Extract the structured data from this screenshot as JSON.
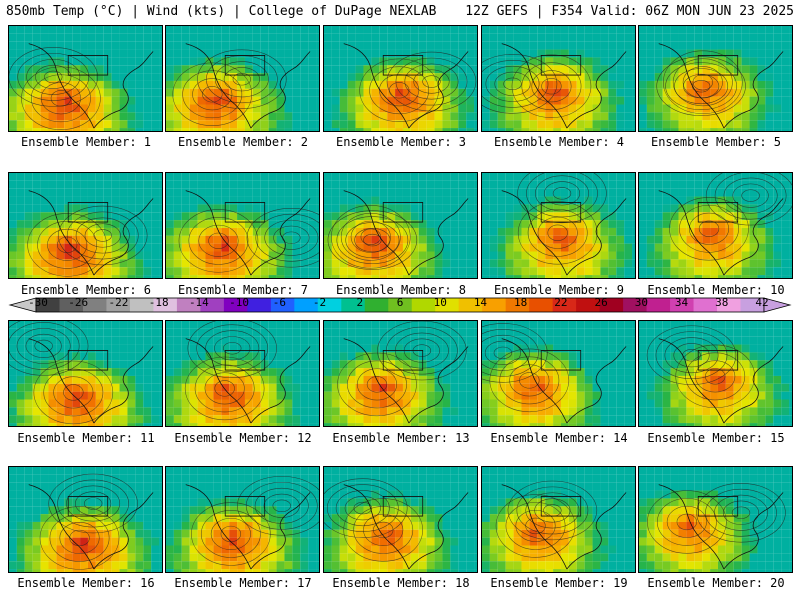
{
  "header": {
    "left": "850mb Temp (°C) | Wind (kts) | College of DuPage NEXLAB",
    "right": "12Z GEFS | F354 Valid: 06Z MON JUN 23 2025"
  },
  "colorbar": {
    "labels": [
      "-30",
      "-26",
      "-22",
      "-18",
      "-14",
      "-10",
      "-6",
      "-2",
      "2",
      "6",
      "10",
      "14",
      "18",
      "22",
      "26",
      "30",
      "34",
      "38",
      "42"
    ],
    "colors": [
      "#404040",
      "#606060",
      "#808080",
      "#a0a0a0",
      "#c0c0c0",
      "#e0c0e0",
      "#c080c0",
      "#a040c0",
      "#8000c0",
      "#4020e0",
      "#2060ff",
      "#00a0ff",
      "#00d0e0",
      "#00c090",
      "#30b030",
      "#70c020",
      "#b0d800",
      "#e0e000",
      "#f0c000",
      "#f8a000",
      "#f07800",
      "#e85000",
      "#d82818",
      "#c01010",
      "#a00020",
      "#a01060",
      "#c02090",
      "#d040b0",
      "#e070d0",
      "#f0a0e0",
      "#c8a0e0"
    ]
  },
  "members": [
    {
      "label": "Ensemble Member: 1"
    },
    {
      "label": "Ensemble Member: 2"
    },
    {
      "label": "Ensemble Member: 3"
    },
    {
      "label": "Ensemble Member: 4"
    },
    {
      "label": "Ensemble Member: 5"
    },
    {
      "label": "Ensemble Member: 6"
    },
    {
      "label": "Ensemble Member: 7"
    },
    {
      "label": "Ensemble Member: 8"
    },
    {
      "label": "Ensemble Member: 9"
    },
    {
      "label": "Ensemble Member: 10"
    },
    {
      "label": "Ensemble Member: 11"
    },
    {
      "label": "Ensemble Member: 12"
    },
    {
      "label": "Ensemble Member: 13"
    },
    {
      "label": "Ensemble Member: 14"
    },
    {
      "label": "Ensemble Member: 15"
    },
    {
      "label": "Ensemble Member: 16"
    },
    {
      "label": "Ensemble Member: 17"
    },
    {
      "label": "Ensemble Member: 18"
    },
    {
      "label": "Ensemble Member: 19"
    },
    {
      "label": "Ensemble Member: 20"
    }
  ]
}
